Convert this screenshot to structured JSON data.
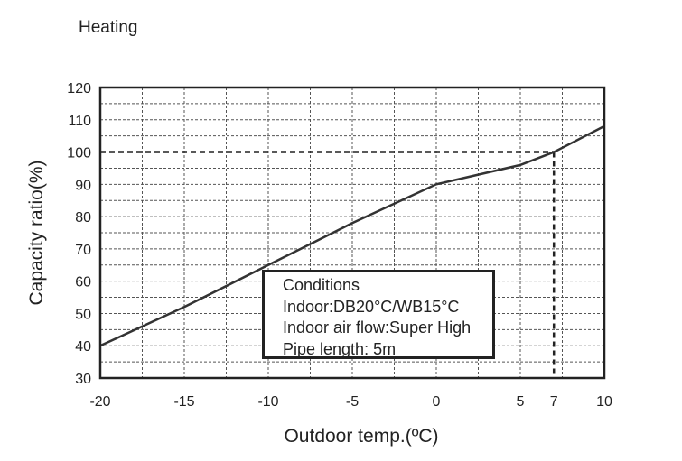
{
  "chart_data": {
    "type": "line",
    "title": "Heating",
    "xlabel": "Outdoor temp.(ºC)",
    "ylabel": "Capacity ratio(%)",
    "xlim": [
      -20,
      10
    ],
    "ylim": [
      30,
      120
    ],
    "x_ticks": [
      "-20",
      "-15",
      "-10",
      "-5",
      "0",
      "5",
      "7",
      "10"
    ],
    "y_ticks": [
      "30",
      "40",
      "50",
      "60",
      "70",
      "80",
      "90",
      "100",
      "110",
      "120"
    ],
    "grid": true,
    "x": [
      -20,
      -15,
      -10,
      -5,
      0,
      5,
      7,
      10
    ],
    "y": [
      40,
      52,
      65,
      78,
      90,
      96,
      100,
      108
    ],
    "reference_point": {
      "x": 7,
      "y": 100
    },
    "annotation": {
      "lines": [
        "Conditions",
        "Indoor:DB20°C/WB15°C",
        "Indoor air flow:Super High",
        "Pipe length: 5m"
      ]
    },
    "colors": {
      "line": "#333333",
      "grid": "#555555",
      "axes": "#222222"
    }
  }
}
